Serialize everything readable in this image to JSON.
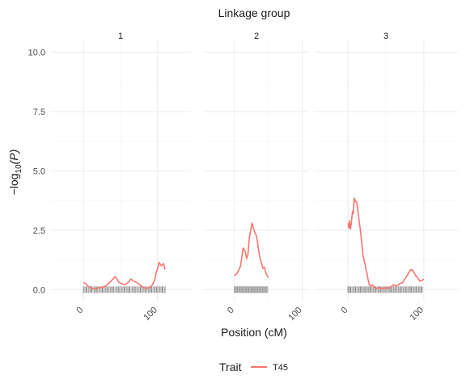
{
  "chart_data": {
    "type": "line",
    "title": "",
    "facet_strip_title": "Linkage group",
    "facets": [
      {
        "label": "1",
        "xlim": [
          -45,
          145
        ],
        "x_ticks": [
          0,
          100
        ],
        "x": [
          0,
          3,
          6,
          9,
          12,
          16,
          20,
          25,
          30,
          35,
          40,
          43,
          45,
          48,
          52,
          56,
          60,
          64,
          68,
          72,
          76,
          80,
          85,
          90,
          93,
          96,
          98,
          100,
          102,
          105,
          108,
          110
        ],
        "y": [
          0.3,
          0.25,
          0.15,
          0.1,
          0.05,
          0.05,
          0.08,
          0.1,
          0.15,
          0.3,
          0.45,
          0.55,
          0.45,
          0.3,
          0.25,
          0.2,
          0.3,
          0.45,
          0.35,
          0.3,
          0.2,
          0.1,
          0.05,
          0.1,
          0.2,
          0.4,
          0.7,
          0.9,
          1.15,
          1.0,
          1.1,
          0.85
        ],
        "markers_x": [
          0,
          110
        ]
      },
      {
        "label": "2",
        "xlim": [
          -45,
          110
        ],
        "x_ticks": [
          0,
          100
        ],
        "x": [
          0,
          3,
          6,
          9,
          11,
          13,
          16,
          18,
          20,
          22,
          24,
          26,
          28,
          30,
          32,
          34,
          36,
          38,
          40,
          42,
          44,
          46,
          48,
          50
        ],
        "y": [
          0.6,
          0.65,
          0.8,
          1.0,
          1.4,
          1.75,
          1.6,
          1.3,
          1.5,
          2.2,
          2.5,
          2.8,
          2.6,
          2.4,
          2.3,
          2.0,
          1.6,
          1.3,
          1.1,
          0.9,
          0.95,
          0.75,
          0.6,
          0.5
        ],
        "markers_x": [
          0,
          50
        ]
      },
      {
        "label": "3",
        "xlim": [
          -45,
          145
        ],
        "x_ticks": [
          0,
          100
        ],
        "x": [
          0,
          1,
          2,
          3,
          4,
          5,
          6,
          7,
          8,
          9,
          10,
          11,
          12,
          13,
          14,
          15,
          16,
          17,
          18,
          19,
          20,
          21,
          22,
          23,
          24,
          25,
          26,
          27,
          28,
          30,
          32,
          35,
          38,
          41,
          44,
          47,
          50,
          53,
          56,
          60,
          64,
          68,
          72,
          76,
          80,
          83,
          86,
          89,
          92,
          95,
          98,
          100
        ],
        "y": [
          2.8,
          2.6,
          2.9,
          2.55,
          2.7,
          3.0,
          3.3,
          3.2,
          3.85,
          3.8,
          3.7,
          3.7,
          3.6,
          3.3,
          3.1,
          2.8,
          2.6,
          2.3,
          2.0,
          1.7,
          1.4,
          1.3,
          1.1,
          1.0,
          0.8,
          0.7,
          0.5,
          0.35,
          0.2,
          0.15,
          0.2,
          0.1,
          0.05,
          0.1,
          0.05,
          0.05,
          0.1,
          0.05,
          0.1,
          0.2,
          0.15,
          0.25,
          0.3,
          0.5,
          0.7,
          0.85,
          0.8,
          0.6,
          0.5,
          0.35,
          0.4,
          0.45
        ],
        "markers_x": [
          0,
          100
        ]
      }
    ],
    "y_ticks": [
      0.0,
      2.5,
      5.0,
      7.5,
      10.0
    ],
    "y_tick_labels": [
      "0.0",
      "2.5",
      "5.0",
      "7.5",
      "10.0"
    ],
    "ylim": [
      -0.5,
      10.5
    ],
    "xlabel": "Position (cM)",
    "ylabel_base": "−log",
    "ylabel_sub": "10",
    "ylabel_var": "(P)",
    "grid": true,
    "legend_position": "bottom",
    "legend_title": "Trait",
    "series": [
      {
        "name": "T45",
        "color": "#f8766d"
      }
    ]
  }
}
